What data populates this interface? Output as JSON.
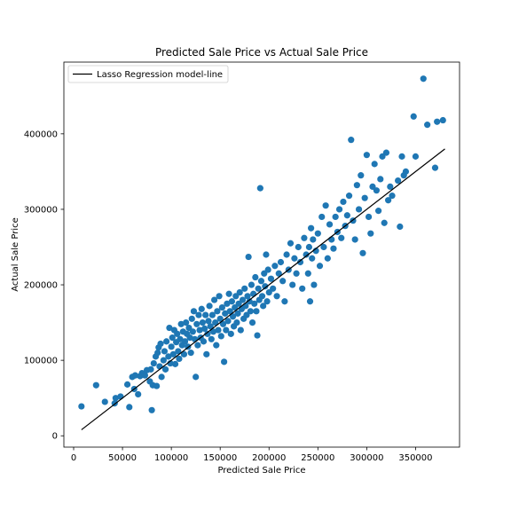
{
  "chart_data": {
    "type": "scatter",
    "title": "Predicted Sale Price vs Actual Sale Price",
    "xlabel": "Predicted Sale Price",
    "ylabel": "Actual Sale Price",
    "xlim": [
      -10000,
      395000
    ],
    "ylim": [
      -15000,
      495000
    ],
    "xticks": [
      0,
      50000,
      100000,
      150000,
      200000,
      250000,
      300000,
      350000
    ],
    "xtick_labels": [
      "0",
      "50000",
      "100000",
      "150000",
      "200000",
      "250000",
      "300000",
      "350000"
    ],
    "yticks": [
      0,
      100000,
      200000,
      300000,
      400000
    ],
    "ytick_labels": [
      "0",
      "100000",
      "200000",
      "300000",
      "400000"
    ],
    "grid": false,
    "legend": {
      "placement": "upper-left",
      "entries": [
        "Lasso Regression model-line"
      ]
    },
    "line": {
      "name": "Lasso Regression model-line",
      "x": [
        8000,
        380000
      ],
      "y": [
        8000,
        380000
      ],
      "color": "#000000"
    },
    "point_color": "#1f77b4",
    "points": [
      [
        8000,
        39000
      ],
      [
        23000,
        67000
      ],
      [
        32000,
        45000
      ],
      [
        42000,
        43000
      ],
      [
        43000,
        50000
      ],
      [
        48000,
        52000
      ],
      [
        55000,
        68000
      ],
      [
        57000,
        38000
      ],
      [
        60000,
        78000
      ],
      [
        62000,
        62000
      ],
      [
        63000,
        80000
      ],
      [
        66000,
        55000
      ],
      [
        68000,
        79000
      ],
      [
        70000,
        83000
      ],
      [
        73000,
        80000
      ],
      [
        75000,
        87000
      ],
      [
        78000,
        72000
      ],
      [
        79000,
        88000
      ],
      [
        80000,
        34000
      ],
      [
        81000,
        67000
      ],
      [
        82000,
        96000
      ],
      [
        84000,
        105000
      ],
      [
        85000,
        66000
      ],
      [
        86000,
        110000
      ],
      [
        87000,
        117000
      ],
      [
        88000,
        92000
      ],
      [
        89000,
        122000
      ],
      [
        90000,
        78000
      ],
      [
        92000,
        100000
      ],
      [
        93000,
        112000
      ],
      [
        94000,
        88000
      ],
      [
        95000,
        125000
      ],
      [
        97000,
        105000
      ],
      [
        98000,
        143000
      ],
      [
        99000,
        96000
      ],
      [
        100000,
        118000
      ],
      [
        101000,
        130000
      ],
      [
        102000,
        108000
      ],
      [
        103000,
        140000
      ],
      [
        104000,
        95000
      ],
      [
        105000,
        124000
      ],
      [
        106000,
        135000
      ],
      [
        107000,
        112000
      ],
      [
        108000,
        102000
      ],
      [
        109000,
        128000
      ],
      [
        110000,
        148000
      ],
      [
        111000,
        120000
      ],
      [
        112000,
        138000
      ],
      [
        113000,
        108000
      ],
      [
        114000,
        125000
      ],
      [
        115000,
        150000
      ],
      [
        116000,
        135000
      ],
      [
        117000,
        118000
      ],
      [
        118000,
        143000
      ],
      [
        119000,
        130000
      ],
      [
        120000,
        110000
      ],
      [
        121000,
        155000
      ],
      [
        122000,
        138000
      ],
      [
        123000,
        165000
      ],
      [
        124000,
        128000
      ],
      [
        125000,
        78000
      ],
      [
        126000,
        148000
      ],
      [
        127000,
        120000
      ],
      [
        128000,
        160000
      ],
      [
        129000,
        140000
      ],
      [
        130000,
        130000
      ],
      [
        131000,
        168000
      ],
      [
        132000,
        150000
      ],
      [
        133000,
        125000
      ],
      [
        134000,
        142000
      ],
      [
        135000,
        160000
      ],
      [
        136000,
        108000
      ],
      [
        137000,
        135000
      ],
      [
        138000,
        152000
      ],
      [
        139000,
        172000
      ],
      [
        140000,
        145000
      ],
      [
        141000,
        128000
      ],
      [
        142000,
        160000
      ],
      [
        143000,
        138000
      ],
      [
        144000,
        180000
      ],
      [
        145000,
        150000
      ],
      [
        146000,
        120000
      ],
      [
        147000,
        165000
      ],
      [
        148000,
        140000
      ],
      [
        149000,
        185000
      ],
      [
        150000,
        155000
      ],
      [
        151000,
        132000
      ],
      [
        152000,
        170000
      ],
      [
        153000,
        148000
      ],
      [
        154000,
        98000
      ],
      [
        155000,
        162000
      ],
      [
        156000,
        140000
      ],
      [
        157000,
        175000
      ],
      [
        158000,
        152000
      ],
      [
        159000,
        188000
      ],
      [
        160000,
        165000
      ],
      [
        161000,
        135000
      ],
      [
        162000,
        178000
      ],
      [
        163000,
        158000
      ],
      [
        164000,
        145000
      ],
      [
        165000,
        170000
      ],
      [
        166000,
        185000
      ],
      [
        167000,
        150000
      ],
      [
        168000,
        162000
      ],
      [
        169000,
        175000
      ],
      [
        170000,
        190000
      ],
      [
        171000,
        140000
      ],
      [
        172000,
        168000
      ],
      [
        173000,
        180000
      ],
      [
        174000,
        155000
      ],
      [
        175000,
        195000
      ],
      [
        176000,
        172000
      ],
      [
        177000,
        160000
      ],
      [
        178000,
        185000
      ],
      [
        179000,
        237000
      ],
      [
        180000,
        178000
      ],
      [
        181000,
        165000
      ],
      [
        182000,
        200000
      ],
      [
        183000,
        150000
      ],
      [
        184000,
        188000
      ],
      [
        185000,
        175000
      ],
      [
        186000,
        210000
      ],
      [
        187000,
        165000
      ],
      [
        188000,
        133000
      ],
      [
        189000,
        195000
      ],
      [
        190000,
        180000
      ],
      [
        191000,
        328000
      ],
      [
        192000,
        205000
      ],
      [
        193000,
        185000
      ],
      [
        194000,
        172000
      ],
      [
        195000,
        215000
      ],
      [
        196000,
        198000
      ],
      [
        197000,
        240000
      ],
      [
        198000,
        178000
      ],
      [
        199000,
        220000
      ],
      [
        200000,
        190000
      ],
      [
        202000,
        208000
      ],
      [
        204000,
        195000
      ],
      [
        206000,
        225000
      ],
      [
        208000,
        185000
      ],
      [
        210000,
        215000
      ],
      [
        212000,
        230000
      ],
      [
        214000,
        205000
      ],
      [
        216000,
        178000
      ],
      [
        218000,
        240000
      ],
      [
        220000,
        220000
      ],
      [
        222000,
        255000
      ],
      [
        224000,
        200000
      ],
      [
        226000,
        235000
      ],
      [
        228000,
        215000
      ],
      [
        230000,
        250000
      ],
      [
        232000,
        230000
      ],
      [
        234000,
        195000
      ],
      [
        236000,
        262000
      ],
      [
        238000,
        240000
      ],
      [
        240000,
        215000
      ],
      [
        241000,
        250000
      ],
      [
        242000,
        178000
      ],
      [
        243000,
        275000
      ],
      [
        244000,
        235000
      ],
      [
        245000,
        260000
      ],
      [
        246000,
        200000
      ],
      [
        248000,
        245000
      ],
      [
        250000,
        268000
      ],
      [
        252000,
        225000
      ],
      [
        254000,
        290000
      ],
      [
        256000,
        250000
      ],
      [
        258000,
        305000
      ],
      [
        260000,
        235000
      ],
      [
        262000,
        280000
      ],
      [
        264000,
        260000
      ],
      [
        266000,
        248000
      ],
      [
        268000,
        290000
      ],
      [
        270000,
        270000
      ],
      [
        272000,
        300000
      ],
      [
        274000,
        262000
      ],
      [
        276000,
        310000
      ],
      [
        278000,
        278000
      ],
      [
        280000,
        292000
      ],
      [
        282000,
        318000
      ],
      [
        284000,
        392000
      ],
      [
        286000,
        285000
      ],
      [
        288000,
        260000
      ],
      [
        290000,
        332000
      ],
      [
        292000,
        300000
      ],
      [
        294000,
        345000
      ],
      [
        296000,
        242000
      ],
      [
        298000,
        315000
      ],
      [
        300000,
        372000
      ],
      [
        302000,
        290000
      ],
      [
        304000,
        268000
      ],
      [
        306000,
        330000
      ],
      [
        308000,
        360000
      ],
      [
        310000,
        325000
      ],
      [
        312000,
        298000
      ],
      [
        314000,
        340000
      ],
      [
        316000,
        370000
      ],
      [
        318000,
        282000
      ],
      [
        320000,
        375000
      ],
      [
        322000,
        312000
      ],
      [
        324000,
        330000
      ],
      [
        326000,
        318000
      ],
      [
        332000,
        338000
      ],
      [
        334000,
        277000
      ],
      [
        336000,
        370000
      ],
      [
        338000,
        345000
      ],
      [
        340000,
        350000
      ],
      [
        348000,
        423000
      ],
      [
        350000,
        370000
      ],
      [
        358000,
        473000
      ],
      [
        362000,
        412000
      ],
      [
        370000,
        355000
      ],
      [
        372000,
        416000
      ],
      [
        378000,
        418000
      ]
    ]
  }
}
